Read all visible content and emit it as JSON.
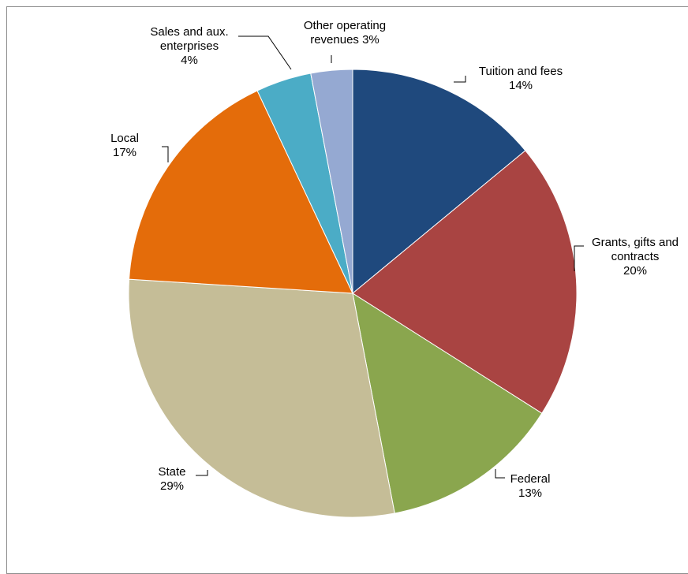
{
  "chart_data": {
    "type": "pie",
    "slices": [
      {
        "label": "Tuition and fees",
        "value": 14,
        "pct_label": "14%",
        "color": "#1f497d"
      },
      {
        "label": "Grants, gifts and contracts",
        "value": 20,
        "pct_label": "20%",
        "color": "#a94442"
      },
      {
        "label": "Federal",
        "value": 13,
        "pct_label": "13%",
        "color": "#8aa64e"
      },
      {
        "label": "State",
        "value": 29,
        "pct_label": "29%",
        "color": "#c5bd97"
      },
      {
        "label": "Local",
        "value": 17,
        "pct_label": "17%",
        "color": "#e46c0a"
      },
      {
        "label": "Sales and aux. enterprises",
        "value": 4,
        "pct_label": "4%",
        "color": "#4bacc6"
      },
      {
        "label": "Other operating revenues",
        "value": 3,
        "pct_label": "3%",
        "color": "#95a9d2"
      }
    ],
    "start_angle": "12 o'clock",
    "direction": "clockwise",
    "legend": "none"
  }
}
